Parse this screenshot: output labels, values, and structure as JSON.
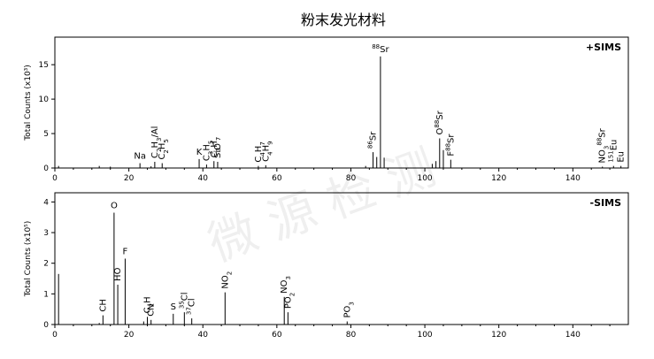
{
  "title": "粉末发光材料",
  "watermark": "微 源 检 测",
  "chart_data": [
    {
      "type": "bar",
      "mode": "+SIMS",
      "ylabel": "Total Counts (x10³)",
      "xlim": [
        0,
        155
      ],
      "ylim": [
        0,
        19
      ],
      "xticks": [
        "0",
        "20",
        "40",
        "60",
        "80",
        "100",
        "120",
        "140"
      ],
      "yticks": [
        "0",
        "5",
        "10",
        "15"
      ],
      "peaks": [
        {
          "x": 1,
          "y": 0.3
        },
        {
          "x": 12,
          "y": 0.3
        },
        {
          "x": 15,
          "y": 0.2
        },
        {
          "x": 23,
          "y": 0.7
        },
        {
          "x": 26,
          "y": 0.25
        },
        {
          "x": 27,
          "y": 0.9
        },
        {
          "x": 29,
          "y": 0.7
        },
        {
          "x": 39,
          "y": 1.3
        },
        {
          "x": 41,
          "y": 0.5
        },
        {
          "x": 43,
          "y": 1.0
        },
        {
          "x": 44,
          "y": 0.9
        },
        {
          "x": 55,
          "y": 0.3
        },
        {
          "x": 57,
          "y": 0.4
        },
        {
          "x": 84,
          "y": 0.3
        },
        {
          "x": 86,
          "y": 2.3
        },
        {
          "x": 87,
          "y": 1.6
        },
        {
          "x": 88,
          "y": 16.2
        },
        {
          "x": 89,
          "y": 1.5
        },
        {
          "x": 102,
          "y": 0.6
        },
        {
          "x": 103,
          "y": 1.0
        },
        {
          "x": 104,
          "y": 4.3
        },
        {
          "x": 105,
          "y": 2.6
        },
        {
          "x": 107,
          "y": 1.2
        },
        {
          "x": 148,
          "y": 0.2
        },
        {
          "x": 151,
          "y": 0.3
        },
        {
          "x": 153,
          "y": 0.3
        }
      ],
      "labels": [
        {
          "x": 23,
          "y": 0.7,
          "parts": [
            [
              "t",
              "Na"
            ]
          ],
          "rot": 0
        },
        {
          "x": 27,
          "y": 0.9,
          "parts": [
            [
              "t",
              "C"
            ],
            [
              "sub",
              "2"
            ],
            [
              "t",
              "H"
            ],
            [
              "sub",
              "3"
            ],
            [
              "t",
              "/Al"
            ]
          ],
          "rot": -90
        },
        {
          "x": 29,
          "y": 0.7,
          "parts": [
            [
              "t",
              "C"
            ],
            [
              "sub",
              "2"
            ],
            [
              "t",
              "H"
            ],
            [
              "sub",
              "5"
            ]
          ],
          "rot": -90
        },
        {
          "x": 39,
          "y": 1.3,
          "parts": [
            [
              "t",
              "K"
            ]
          ],
          "rot": 0
        },
        {
          "x": 41,
          "y": 0.5,
          "parts": [
            [
              "t",
              "C"
            ],
            [
              "sub",
              "3"
            ],
            [
              "t",
              "H"
            ],
            [
              "sub",
              "5"
            ]
          ],
          "rot": -90
        },
        {
          "x": 43,
          "y": 1.0,
          "parts": [
            [
              "t",
              "C"
            ],
            [
              "sub",
              "3"
            ],
            [
              "t",
              "H"
            ],
            [
              "sub",
              "7"
            ]
          ],
          "rot": -90
        },
        {
          "x": 44,
          "y": 0.9,
          "parts": [
            [
              "t",
              "SiO"
            ]
          ],
          "rot": -90
        },
        {
          "x": 55,
          "y": 0.3,
          "parts": [
            [
              "t",
              "C"
            ],
            [
              "sub",
              "4"
            ],
            [
              "t",
              "H"
            ],
            [
              "sub",
              "7"
            ]
          ],
          "rot": -90
        },
        {
          "x": 57,
          "y": 0.4,
          "parts": [
            [
              "t",
              "C"
            ],
            [
              "sub",
              "4"
            ],
            [
              "t",
              "H"
            ],
            [
              "sub",
              "9"
            ]
          ],
          "rot": -90
        },
        {
          "x": 86,
          "y": 2.3,
          "parts": [
            [
              "sup",
              "86"
            ],
            [
              "t",
              "Sr"
            ]
          ],
          "rot": -90
        },
        {
          "x": 88,
          "y": 16.2,
          "parts": [
            [
              "sup",
              "88"
            ],
            [
              "t",
              "Sr"
            ]
          ],
          "rot": 0
        },
        {
          "x": 104,
          "y": 4.3,
          "parts": [
            [
              "t",
              "O"
            ],
            [
              "sup",
              "88"
            ],
            [
              "t",
              "Sr"
            ]
          ],
          "rot": -90
        },
        {
          "x": 107,
          "y": 1.2,
          "parts": [
            [
              "t",
              "F"
            ],
            [
              "sup",
              "88"
            ],
            [
              "t",
              "Sr"
            ]
          ],
          "rot": -90
        },
        {
          "x": 148,
          "y": 0.2,
          "parts": [
            [
              "t",
              "NO"
            ],
            [
              "sub",
              "3"
            ],
            [
              "sup",
              "88"
            ],
            [
              "t",
              "Sr"
            ]
          ],
          "rot": -90
        },
        {
          "x": 151,
          "y": 0.3,
          "parts": [
            [
              "sup",
              "151"
            ],
            [
              "t",
              "Eu"
            ]
          ],
          "rot": -90
        },
        {
          "x": 153,
          "y": 0.3,
          "parts": [
            [
              "t",
              "Eu"
            ]
          ],
          "rot": -90
        }
      ]
    },
    {
      "type": "bar",
      "mode": "-SIMS",
      "ylabel": "Total Counts (x10⁵)",
      "xlim": [
        0,
        155
      ],
      "ylim": [
        0,
        4.3
      ],
      "xticks": [
        "0",
        "20",
        "40",
        "60",
        "80",
        "100",
        "120",
        "140"
      ],
      "yticks": [
        "0",
        "1",
        "2",
        "3",
        "4"
      ],
      "peaks": [
        {
          "x": 1,
          "y": 1.65
        },
        {
          "x": 12,
          "y": 0.05
        },
        {
          "x": 13,
          "y": 0.3
        },
        {
          "x": 16,
          "y": 3.65
        },
        {
          "x": 17,
          "y": 1.3
        },
        {
          "x": 19,
          "y": 2.15
        },
        {
          "x": 24,
          "y": 0.1
        },
        {
          "x": 25,
          "y": 0.25
        },
        {
          "x": 26,
          "y": 0.15
        },
        {
          "x": 32,
          "y": 0.35
        },
        {
          "x": 35,
          "y": 0.4
        },
        {
          "x": 37,
          "y": 0.2
        },
        {
          "x": 46,
          "y": 1.05
        },
        {
          "x": 62,
          "y": 0.9
        },
        {
          "x": 63,
          "y": 0.4
        },
        {
          "x": 79,
          "y": 0.1
        }
      ],
      "labels": [
        {
          "x": 13,
          "y": 0.3,
          "parts": [
            [
              "t",
              "CH"
            ]
          ],
          "rot": -90
        },
        {
          "x": 16,
          "y": 3.65,
          "parts": [
            [
              "t",
              "O"
            ]
          ],
          "rot": 0
        },
        {
          "x": 17,
          "y": 1.3,
          "parts": [
            [
              "t",
              "HO"
            ]
          ],
          "rot": -90
        },
        {
          "x": 19,
          "y": 2.15,
          "parts": [
            [
              "t",
              "F"
            ]
          ],
          "rot": 0
        },
        {
          "x": 25,
          "y": 0.25,
          "parts": [
            [
              "t",
              "C"
            ],
            [
              "sub",
              "2"
            ],
            [
              "t",
              "H"
            ]
          ],
          "rot": -90
        },
        {
          "x": 26,
          "y": 0.15,
          "parts": [
            [
              "t",
              "CN"
            ]
          ],
          "rot": -90
        },
        {
          "x": 32,
          "y": 0.35,
          "parts": [
            [
              "t",
              "S"
            ]
          ],
          "rot": 0
        },
        {
          "x": 35,
          "y": 0.4,
          "parts": [
            [
              "sup",
              "35"
            ],
            [
              "t",
              "Cl"
            ]
          ],
          "rot": -90
        },
        {
          "x": 37,
          "y": 0.2,
          "parts": [
            [
              "sup",
              "37"
            ],
            [
              "t",
              "Cl"
            ]
          ],
          "rot": -90
        },
        {
          "x": 46,
          "y": 1.05,
          "parts": [
            [
              "t",
              "NO"
            ],
            [
              "sub",
              "2"
            ]
          ],
          "rot": -90
        },
        {
          "x": 62,
          "y": 0.9,
          "parts": [
            [
              "t",
              "NO"
            ],
            [
              "sub",
              "3"
            ]
          ],
          "rot": -90
        },
        {
          "x": 63,
          "y": 0.4,
          "parts": [
            [
              "t",
              "PO"
            ],
            [
              "sub",
              "2"
            ]
          ],
          "rot": -90
        },
        {
          "x": 79,
          "y": 0.1,
          "parts": [
            [
              "t",
              "PO"
            ],
            [
              "sub",
              "3"
            ]
          ],
          "rot": -90
        }
      ]
    }
  ]
}
